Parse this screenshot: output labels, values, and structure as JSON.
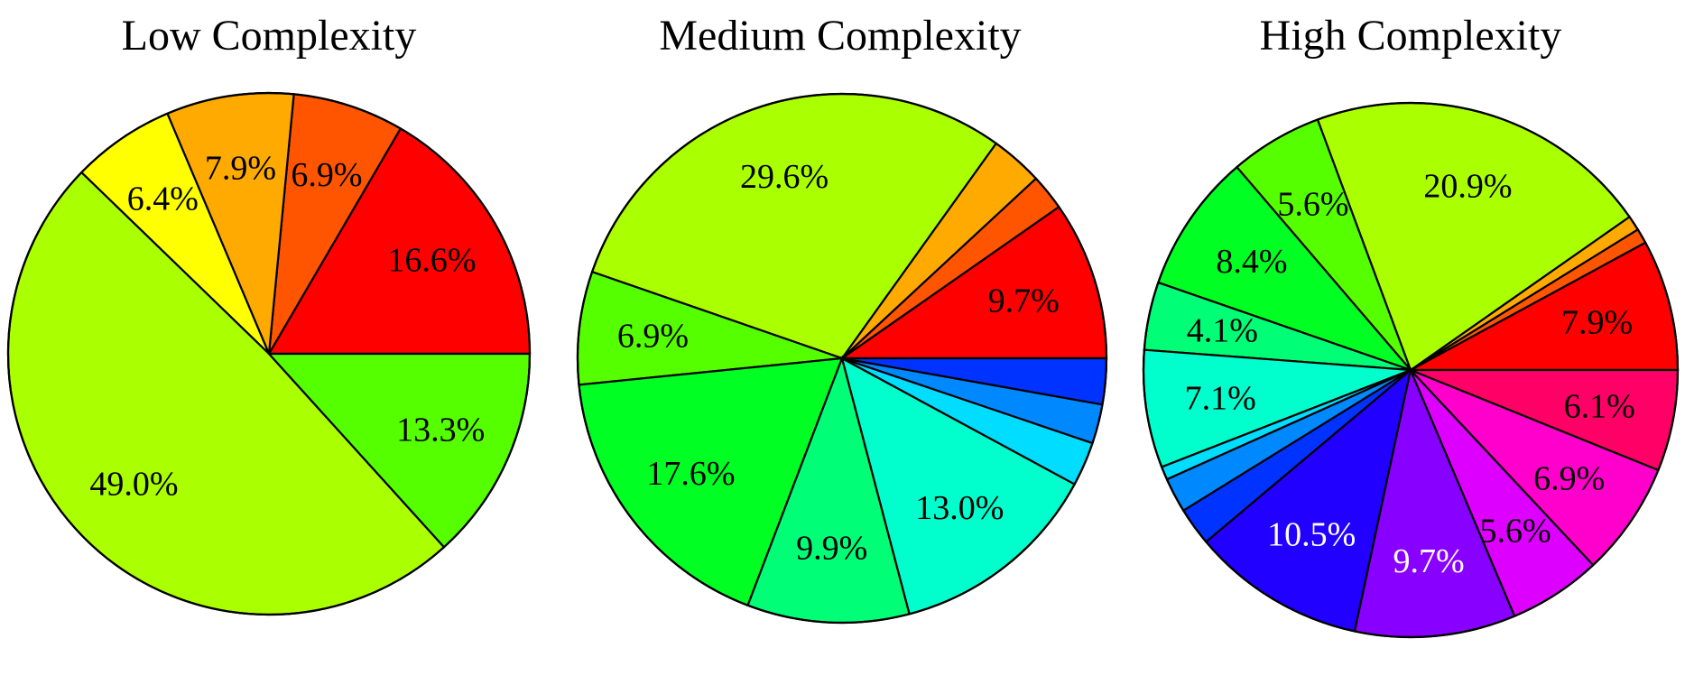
{
  "chart_data": [
    {
      "type": "pie",
      "title": "Low Complexity",
      "start_angle_deg": 0,
      "direction": "counterclockwise",
      "slices": [
        {
          "value": 16.6,
          "label": "16.6%",
          "color": "#ff0000",
          "label_color": "#000000"
        },
        {
          "value": 6.9,
          "label": "6.9%",
          "color": "#ff5500",
          "label_color": "#000000"
        },
        {
          "value": 7.9,
          "label": "7.9%",
          "color": "#ffaa00",
          "label_color": "#000000"
        },
        {
          "value": 6.4,
          "label": "6.4%",
          "color": "#ffff00",
          "label_color": "#000000"
        },
        {
          "value": 49.0,
          "label": "49.0%",
          "color": "#aaff00",
          "label_color": "#000000"
        },
        {
          "value": 13.3,
          "label": "13.3%",
          "color": "#55ff00",
          "label_color": "#000000"
        }
      ]
    },
    {
      "type": "pie",
      "title": "Medium Complexity",
      "start_angle_deg": 0,
      "direction": "counterclockwise",
      "slices": [
        {
          "value": 9.7,
          "label": "9.7%",
          "color": "#ff0000",
          "label_color": "#000000"
        },
        {
          "value": 2.2,
          "label": "",
          "color": "#ff5500",
          "label_color": "#000000"
        },
        {
          "value": 3.2,
          "label": "",
          "color": "#ffaa00",
          "label_color": "#000000"
        },
        {
          "value": 29.6,
          "label": "29.6%",
          "color": "#aaff00",
          "label_color": "#000000"
        },
        {
          "value": 6.9,
          "label": "6.9%",
          "color": "#55ff00",
          "label_color": "#000000"
        },
        {
          "value": 17.6,
          "label": "17.6%",
          "color": "#00ff22",
          "label_color": "#000000"
        },
        {
          "value": 9.9,
          "label": "9.9%",
          "color": "#00ff77",
          "label_color": "#000000"
        },
        {
          "value": 13.0,
          "label": "13.0%",
          "color": "#00ffcc",
          "label_color": "#000000"
        },
        {
          "value": 2.7,
          "label": "",
          "color": "#00ddff",
          "label_color": "#000000"
        },
        {
          "value": 2.4,
          "label": "",
          "color": "#0088ff",
          "label_color": "#000000"
        },
        {
          "value": 2.8,
          "label": "",
          "color": "#0033ff",
          "label_color": "#000000"
        }
      ]
    },
    {
      "type": "pie",
      "title": "High Complexity",
      "start_angle_deg": 0,
      "direction": "counterclockwise",
      "slices": [
        {
          "value": 7.9,
          "label": "7.9%",
          "color": "#ff0000",
          "label_color": "#000000"
        },
        {
          "value": 0.9,
          "label": "",
          "color": "#ff5500",
          "label_color": "#000000"
        },
        {
          "value": 0.9,
          "label": "",
          "color": "#ffaa00",
          "label_color": "#000000"
        },
        {
          "value": 20.9,
          "label": "20.9%",
          "color": "#aaff00",
          "label_color": "#000000"
        },
        {
          "value": 5.6,
          "label": "5.6%",
          "color": "#55ff00",
          "label_color": "#000000"
        },
        {
          "value": 8.4,
          "label": "8.4%",
          "color": "#00ff22",
          "label_color": "#000000"
        },
        {
          "value": 4.1,
          "label": "4.1%",
          "color": "#00ff77",
          "label_color": "#000000"
        },
        {
          "value": 7.1,
          "label": "7.1%",
          "color": "#00ffcc",
          "label_color": "#000000"
        },
        {
          "value": 0.8,
          "label": "",
          "color": "#00ddff",
          "label_color": "#000000"
        },
        {
          "value": 2.1,
          "label": "",
          "color": "#0088ff",
          "label_color": "#000000"
        },
        {
          "value": 2.3,
          "label": "",
          "color": "#0033ff",
          "label_color": "#000000"
        },
        {
          "value": 10.5,
          "label": "10.5%",
          "color": "#2200ff",
          "label_color": "#ffffff"
        },
        {
          "value": 9.7,
          "label": "9.7%",
          "color": "#8800ff",
          "label_color": "#ffffff"
        },
        {
          "value": 5.6,
          "label": "5.6%",
          "color": "#dd00ff",
          "label_color": "#000000"
        },
        {
          "value": 6.9,
          "label": "6.9%",
          "color": "#ff00cc",
          "label_color": "#000000"
        },
        {
          "value": 6.1,
          "label": "6.1%",
          "color": "#ff0066",
          "label_color": "#000000"
        }
      ]
    }
  ]
}
